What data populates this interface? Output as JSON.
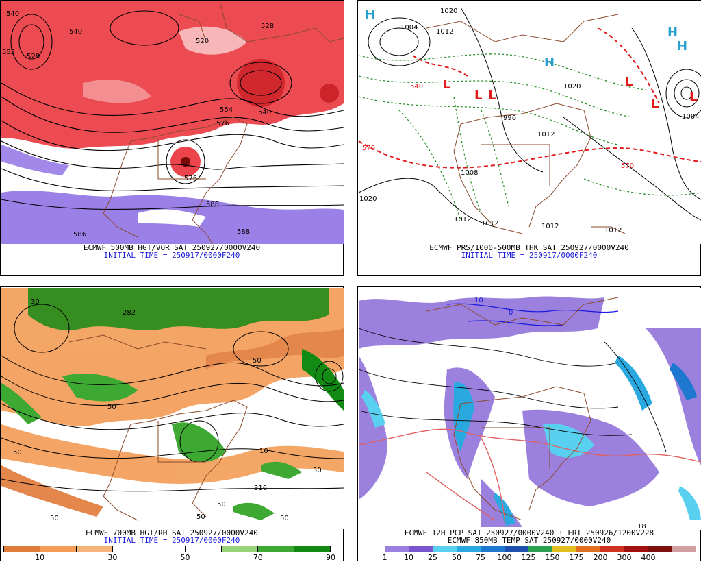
{
  "panels": [
    {
      "id": "p1",
      "caption": "ECMWF 500MB HGT/VOR SAT 250927/0000V240",
      "init": "INITIAL TIME = 250917/0000F240",
      "labels": [
        "540",
        "552",
        "528",
        "520",
        "540",
        "528",
        "554",
        "576",
        "540",
        "576",
        "588",
        "586",
        "588"
      ],
      "colors": {
        "vort": "#e8232b",
        "neg": "#7a55e0"
      }
    },
    {
      "id": "p2",
      "caption": "ECMWF PRS/1000-500MB THK SAT 250927/0000V240",
      "init": "INITIAL TIME = 250917/0000F240",
      "labels": [
        "1020",
        "1004",
        "1012",
        "540",
        "996",
        "1012",
        "570",
        "1020",
        "1012",
        "1012",
        "1012",
        "1012",
        "570",
        "1004",
        "1008",
        "1020"
      ],
      "symbols": [
        "H",
        "H",
        "L",
        "L",
        "L",
        "L",
        "L",
        "H",
        "L",
        "H"
      ],
      "colors": {
        "thk": "#e31a1c",
        "green": "#1f8a1f"
      }
    },
    {
      "id": "p3",
      "caption": "ECMWF 700MB HGT/RH SAT 250927/0000V240",
      "init": "INITIAL TIME = 250917/0000F240",
      "labels": [
        "282",
        "50",
        "50",
        "10",
        "50",
        "30",
        "50",
        "316",
        "50",
        "50",
        "50",
        "50"
      ],
      "colorbar": {
        "colors": [
          "#e07b39",
          "#f39c55",
          "#f5b57a",
          "#ffffff",
          "#ffffff",
          "#ffffff",
          "#9ad47a",
          "#3da832",
          "#138a13"
        ],
        "ticks": [
          "10",
          "30",
          "50",
          "70",
          "90"
        ]
      }
    },
    {
      "id": "p4",
      "caption": "ECMWF 12H PCP SAT 250927/0000V240 : FRI 250926/1200V228",
      "caption2": "ECMWF 850MB TEMP SAT 250927/0000V240",
      "labels": [
        "18",
        "10",
        "0"
      ],
      "colorbar": {
        "colors": [
          "#ffffff",
          "#9a7fe0",
          "#7a55d0",
          "#5ad0f0",
          "#2aa8e0",
          "#1f78d0",
          "#1f50b0",
          "#2aa050",
          "#e0c020",
          "#e07020",
          "#d03020",
          "#a01010",
          "#801010",
          "#d0a0a0"
        ],
        "ticks": [
          "1",
          "10",
          "25",
          "50",
          "75",
          "100",
          "125",
          "150",
          "175",
          "200",
          "300",
          "400"
        ]
      }
    }
  ]
}
